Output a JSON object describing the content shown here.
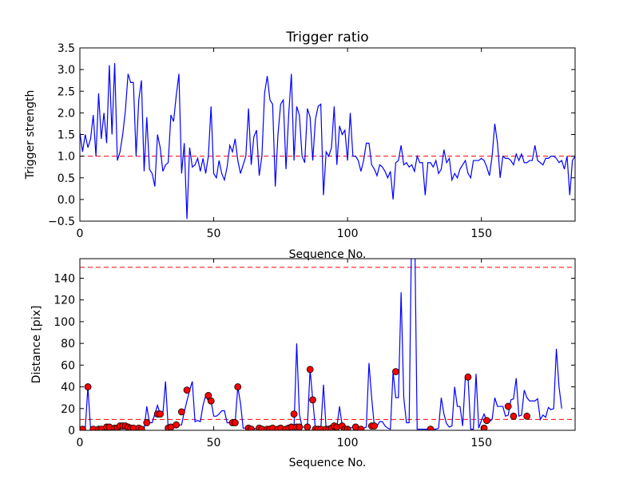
{
  "chart_data": [
    {
      "type": "line",
      "title": "Trigger ratio",
      "xlabel": "Sequence No.",
      "ylabel": "Trigger strength",
      "xlim": [
        0,
        185
      ],
      "ylim": [
        -0.5,
        3.5
      ],
      "xticks": [
        "0",
        "50",
        "100",
        "150"
      ],
      "yticks": [
        "−0.5",
        "0.0",
        "0.5",
        "1.0",
        "1.5",
        "2.0",
        "2.5",
        "3.0",
        "3.5"
      ],
      "threshold": 1.0,
      "line_color": "#0000ff",
      "threshold_color": "#ff0000",
      "series": [
        {
          "values": [
            1.55,
            1.1,
            1.5,
            1.2,
            1.4,
            1.95,
            1.0,
            2.45,
            1.4,
            2.0,
            1.3,
            3.1,
            1.5,
            3.15,
            0.9,
            1.1,
            1.5,
            2.05,
            2.9,
            2.7,
            2.7,
            1.0,
            2.3,
            2.75,
            0.65,
            1.9,
            0.7,
            0.6,
            0.3,
            1.5,
            1.2,
            0.65,
            0.8,
            0.85,
            1.95,
            1.8,
            2.4,
            2.9,
            0.6,
            1.3,
            -0.45,
            1.2,
            0.75,
            0.8,
            0.95,
            0.65,
            0.95,
            0.6,
            1.0,
            2.15,
            0.6,
            0.5,
            0.9,
            0.6,
            0.45,
            0.75,
            1.25,
            1.1,
            1.4,
            0.9,
            0.6,
            0.8,
            1.0,
            2.1,
            0.8,
            1.45,
            1.6,
            0.55,
            1.0,
            2.45,
            2.85,
            2.3,
            2.2,
            0.3,
            1.5,
            2.2,
            2.3,
            0.7,
            1.95,
            2.9,
            0.9,
            2.15,
            1.95,
            1.0,
            0.85,
            2.1,
            1.9,
            0.9,
            1.85,
            2.15,
            2.2,
            0.1,
            1.1,
            1.0,
            1.2,
            2.15,
            0.8,
            1.7,
            1.5,
            1.6,
            0.9,
            2.0,
            1.0,
            1.0,
            0.9,
            0.65,
            0.9,
            1.3,
            1.3,
            0.8,
            0.7,
            0.55,
            0.8,
            0.75,
            0.65,
            0.5,
            0.65,
            0.0,
            0.85,
            0.9,
            1.25,
            0.8,
            0.85,
            0.75,
            0.8,
            0.65,
            1.0,
            0.85,
            0.85,
            0.1,
            0.85,
            0.85,
            0.75,
            0.9,
            0.6,
            0.7,
            1.15,
            0.85,
            0.95,
            0.45,
            0.6,
            0.5,
            0.7,
            0.8,
            0.9,
            0.6,
            0.5,
            0.9,
            0.9,
            0.9,
            0.95,
            0.9,
            0.75,
            0.55,
            1.0,
            1.75,
            1.3,
            0.5,
            1.0,
            0.95,
            0.95,
            0.9,
            0.8,
            1.05,
            0.9,
            1.05,
            0.85,
            0.85,
            0.9,
            0.9,
            1.25,
            0.9,
            0.85,
            0.8,
            0.95,
            0.95,
            1.0,
            1.0,
            0.95,
            0.85,
            0.9,
            0.7,
            1.0,
            0.1,
            0.9,
            1.0
          ]
        }
      ]
    },
    {
      "type": "line",
      "title": "",
      "xlabel": "Sequence No.",
      "ylabel": "Distance [pix]",
      "xlim": [
        0,
        185
      ],
      "ylim": [
        0,
        158
      ],
      "xticks": [
        "0",
        "50",
        "100",
        "150"
      ],
      "yticks": [
        "0",
        "20",
        "40",
        "60",
        "80",
        "100",
        "120",
        "140"
      ],
      "thresholds": [
        10,
        150
      ],
      "line_color": "#0000ff",
      "threshold_color": "#ff0000",
      "marker_color": "#ff0000",
      "series": [
        {
          "values": [
            0,
            1,
            1,
            40,
            1,
            1,
            1,
            0,
            1,
            1,
            3,
            3,
            3,
            2,
            2,
            4,
            4,
            4,
            3,
            2,
            2,
            2,
            2,
            2,
            1,
            22,
            7,
            7,
            15,
            23,
            15,
            15,
            45,
            2,
            3,
            2,
            5,
            5,
            5,
            17,
            27,
            37,
            45,
            8,
            9,
            8,
            23,
            32,
            27,
            27,
            13,
            13,
            15,
            18,
            18,
            7,
            7,
            7,
            7,
            40,
            25,
            2,
            2,
            1,
            1,
            1,
            2,
            2,
            1,
            1,
            1,
            1,
            1,
            2,
            2,
            1,
            1,
            2,
            1,
            2,
            3,
            80,
            15,
            3,
            3,
            4,
            56,
            28,
            1,
            1,
            1,
            42,
            1,
            1,
            2,
            4,
            3,
            22,
            4,
            1,
            1,
            2,
            3,
            1,
            1,
            1,
            2,
            3,
            62,
            30,
            4,
            4,
            8,
            8,
            4,
            2,
            1,
            54,
            30,
            30,
            127,
            30,
            7,
            7,
            200,
            200,
            1,
            1,
            1,
            1,
            1,
            1,
            1,
            1,
            2,
            30,
            15,
            6,
            3,
            4,
            40,
            22,
            22,
            4,
            49,
            49,
            1,
            1,
            52,
            2,
            9,
            15,
            9,
            8,
            10,
            30,
            22,
            22,
            22,
            13,
            14,
            28,
            29,
            48,
            13,
            14,
            37,
            30,
            27,
            27,
            27,
            29,
            10,
            14,
            12,
            21,
            19,
            20,
            75,
            40,
            20
          ],
          "markers": [
            [
              1,
              1
            ],
            [
              3,
              40
            ],
            [
              5,
              1
            ],
            [
              7,
              1
            ],
            [
              8,
              1
            ],
            [
              10,
              3
            ],
            [
              11,
              3
            ],
            [
              13,
              2
            ],
            [
              14,
              2
            ],
            [
              15,
              4
            ],
            [
              16,
              4
            ],
            [
              17,
              4
            ],
            [
              18,
              3
            ],
            [
              19,
              2
            ],
            [
              20,
              2
            ],
            [
              22,
              2
            ],
            [
              23,
              1
            ],
            [
              25,
              7
            ],
            [
              29,
              15
            ],
            [
              30,
              15
            ],
            [
              33,
              2
            ],
            [
              34,
              3
            ],
            [
              36,
              5
            ],
            [
              38,
              17
            ],
            [
              40,
              37
            ],
            [
              48,
              32
            ],
            [
              49,
              27
            ],
            [
              57,
              7
            ],
            [
              58,
              7
            ],
            [
              59,
              40
            ],
            [
              63,
              2
            ],
            [
              64,
              1
            ],
            [
              67,
              2
            ],
            [
              68,
              1
            ],
            [
              70,
              1
            ],
            [
              71,
              1
            ],
            [
              72,
              2
            ],
            [
              74,
              1
            ],
            [
              75,
              2
            ],
            [
              77,
              1
            ],
            [
              78,
              2
            ],
            [
              79,
              3
            ],
            [
              80,
              15
            ],
            [
              81,
              3
            ],
            [
              82,
              3
            ],
            [
              85,
              3
            ],
            [
              86,
              56
            ],
            [
              87,
              28
            ],
            [
              88,
              1
            ],
            [
              89,
              1
            ],
            [
              90,
              1
            ],
            [
              92,
              1
            ],
            [
              93,
              1
            ],
            [
              94,
              2
            ],
            [
              95,
              4
            ],
            [
              96,
              3
            ],
            [
              98,
              4
            ],
            [
              99,
              1
            ],
            [
              100,
              1
            ],
            [
              103,
              3
            ],
            [
              105,
              1
            ],
            [
              109,
              4
            ],
            [
              110,
              4
            ],
            [
              118,
              54
            ],
            [
              131,
              1
            ],
            [
              145,
              49
            ],
            [
              151,
              2
            ],
            [
              152,
              9
            ],
            [
              160,
              22
            ],
            [
              162,
              13
            ],
            [
              167,
              13
            ]
          ]
        }
      ]
    }
  ]
}
